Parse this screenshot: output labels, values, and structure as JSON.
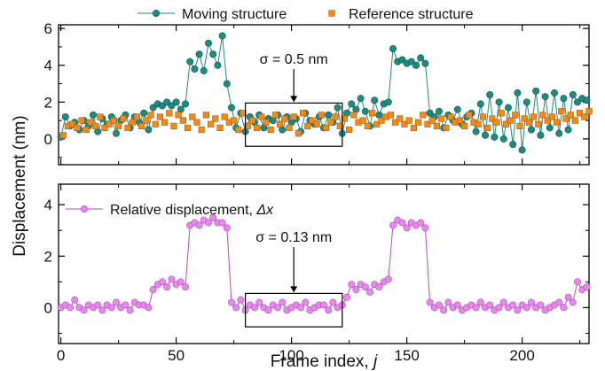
{
  "colors": {
    "moving": "#1f8a80",
    "reference": "#f08a1a",
    "relative": "#e58ae8",
    "relative_line": "#b34bc0",
    "axis": "#000000"
  },
  "shared": {
    "xlabel_prefix": "Frame index, ",
    "xlabel_var": "j",
    "ylabel": "Displacement (nm)"
  },
  "chart_data": [
    {
      "type": "scatter",
      "panel": "top",
      "xlim": [
        -1,
        229
      ],
      "ylim": [
        -1.4,
        6.2
      ],
      "x_ticks": [
        0,
        50,
        100,
        150,
        200
      ],
      "y_ticks": [
        0,
        2,
        4,
        6
      ],
      "legend": [
        {
          "label": "Moving structure",
          "series": "moving"
        },
        {
          "label": "Reference structure",
          "series": "reference"
        }
      ],
      "annotation": {
        "text": "σ = 0.5 nm",
        "box_x": [
          80,
          122
        ],
        "box_y": [
          -0.4,
          1.95
        ],
        "arrow_x": 101
      },
      "series": [
        {
          "name": "Moving structure",
          "key": "moving",
          "marker": "circle",
          "connected": true,
          "x_start": 0,
          "x_step": 2,
          "values": [
            0.1,
            1.2,
            0.7,
            0.9,
            0.5,
            1.0,
            0.7,
            1.3,
            0.4,
            1.1,
            0.8,
            1.2,
            0.3,
            1.0,
            1.3,
            0.6,
            1.2,
            0.9,
            1.4,
            0.5,
            1.7,
            1.9,
            1.8,
            2.0,
            1.8,
            2.0,
            1.6,
            1.9,
            4.2,
            3.8,
            4.6,
            3.7,
            5.2,
            4.6,
            4.0,
            5.6,
            3.0,
            1.7,
            0.6,
            1.4,
            0.4,
            1.2,
            0.9,
            1.3,
            0.6,
            1.1,
            1.0,
            1.3,
            0.5,
            1.2,
            0.9,
            1.1,
            0.4,
            1.4,
            1.0,
            0.8,
            1.2,
            0.6,
            1.3,
            0.9,
            1.7,
            0.3,
            1.4,
            1.9,
            1.6,
            2.2,
            1.5,
            0.7,
            2.1,
            1.3,
            1.9,
            2.0,
            4.9,
            4.2,
            4.3,
            4.1,
            4.2,
            4.0,
            4.4,
            4.1,
            1.4,
            1.2,
            1.5,
            0.6,
            1.3,
            1.0,
            1.6,
            0.8,
            1.2,
            1.4,
            0.4,
            1.9,
            0.2,
            2.4,
            0.1,
            2.0,
            0.0,
            1.7,
            -0.3,
            2.5,
            -0.6,
            2.0,
            0.5,
            2.6,
            0.2,
            2.3,
            0.6,
            2.5,
            0.3,
            2.2,
            0.5,
            2.4,
            2.0,
            2.2,
            2.1
          ]
        },
        {
          "name": "Reference structure",
          "key": "reference",
          "marker": "square",
          "connected": false,
          "x_start": 1,
          "x_step": 2,
          "values": [
            0.2,
            0.7,
            0.8,
            0.6,
            1.0,
            0.5,
            0.9,
            0.7,
            1.2,
            0.6,
            0.8,
            1.0,
            0.7,
            1.1,
            0.6,
            0.9,
            1.2,
            0.7,
            1.0,
            1.3,
            0.8,
            1.2,
            0.9,
            1.4,
            0.7,
            1.3,
            1.0,
            0.6,
            1.2,
            0.9,
            0.5,
            1.3,
            0.8,
            1.1,
            0.6,
            1.2,
            0.9,
            1.0,
            0.5,
            1.4,
            0.7,
            1.0,
            0.6,
            1.2,
            0.9,
            0.5,
            1.3,
            0.8,
            1.1,
            0.6,
            1.2,
            0.3,
            1.4,
            0.7,
            1.0,
            0.8,
            1.3,
            0.6,
            0.9,
            1.2,
            0.7,
            1.1,
            0.5,
            1.3,
            0.9,
            1.0,
            0.7,
            1.4,
            0.8,
            1.0,
            1.2,
            1.3,
            0.9,
            1.1,
            0.8,
            1.0,
            0.6,
            0.9,
            1.3,
            0.8,
            1.0,
            0.7,
            1.1,
            0.6,
            1.2,
            0.9,
            1.0,
            0.7,
            1.3,
            0.9,
            0.8,
            1.2,
            0.6,
            1.1,
            0.9,
            1.4,
            0.8,
            1.0,
            1.3,
            0.7,
            1.1,
            0.9,
            1.2,
            0.8,
            1.3,
            1.0,
            1.2,
            0.9,
            1.5,
            1.1,
            1.3,
            1.0,
            1.4,
            1.2,
            1.5
          ]
        }
      ]
    },
    {
      "type": "line",
      "panel": "bottom",
      "xlim": [
        -1,
        229
      ],
      "ylim": [
        -1.4,
        4.8
      ],
      "x_ticks": [
        0,
        50,
        100,
        150,
        200
      ],
      "y_ticks": [
        0,
        2,
        4
      ],
      "x_tick_labels": [
        "0",
        "50",
        "100",
        "150",
        "200"
      ],
      "legend": [
        {
          "label": "Relative displacement, ",
          "var": "Δx",
          "series": "relative"
        }
      ],
      "annotation": {
        "text": "σ = 0.13 nm",
        "box_x": [
          80,
          122
        ],
        "box_y": [
          -0.75,
          0.55
        ],
        "arrow_x": 101
      },
      "series": [
        {
          "name": "Relative displacement, Δx",
          "key": "relative",
          "marker": "circle",
          "connected": true,
          "x_start": 0,
          "x_step": 2,
          "values": [
            0.0,
            0.1,
            0.0,
            0.3,
            0.0,
            -0.1,
            0.1,
            0.0,
            0.1,
            -0.1,
            0.1,
            0.0,
            0.2,
            0.0,
            0.1,
            -0.1,
            0.2,
            0.1,
            0.1,
            0.0,
            0.7,
            0.9,
            1.0,
            0.8,
            1.1,
            0.9,
            1.0,
            0.8,
            3.2,
            3.3,
            3.2,
            3.4,
            3.3,
            3.5,
            3.3,
            3.3,
            3.1,
            0.2,
            0.0,
            0.3,
            -0.1,
            0.1,
            0.0,
            0.2,
            0.0,
            -0.1,
            0.1,
            0.0,
            0.2,
            -0.1,
            0.0,
            0.1,
            0.0,
            0.2,
            -0.1,
            0.0,
            0.1,
            0.1,
            -0.1,
            0.2,
            0.0,
            0.1,
            0.4,
            0.9,
            0.7,
            0.9,
            0.8,
            0.6,
            0.9,
            0.8,
            1.0,
            1.1,
            3.2,
            3.4,
            3.3,
            3.1,
            3.3,
            3.2,
            3.3,
            3.1,
            0.2,
            0.0,
            0.1,
            -0.1,
            0.2,
            0.0,
            0.1,
            -0.1,
            0.0,
            0.1,
            0.0,
            0.2,
            0.0,
            0.1,
            -0.1,
            0.0,
            0.2,
            0.0,
            0.1,
            -0.1,
            0.1,
            0.0,
            0.2,
            0.0,
            0.1,
            -0.1,
            0.0,
            0.1,
            0.2,
            0.0,
            0.4,
            0.2,
            1.0,
            0.7,
            0.8
          ]
        }
      ]
    }
  ]
}
